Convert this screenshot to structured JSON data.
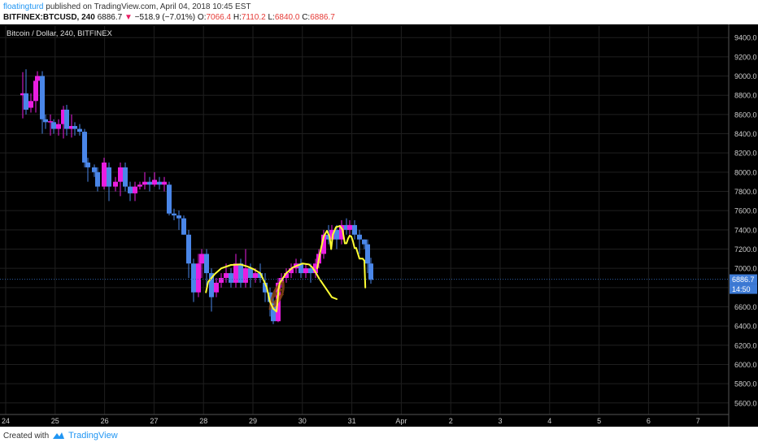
{
  "header": {
    "author": "floatingturd",
    "published_text": "published on TradingView.com, April 04, 2018 10:45 EST",
    "symbol": "BITFINEX:BTCUSD, 240",
    "last": "6886.7",
    "change_arrow": "▼",
    "change": "−518.9 (−7.01%)",
    "o_label": "O:",
    "o_value": "7066.4",
    "h_label": "H:",
    "h_value": "7110.2",
    "l_label": "L:",
    "l_value": "6840.0",
    "c_label": "C:",
    "c_value": "6886.7"
  },
  "footer": {
    "created_with": "Created with",
    "brand": "TradingView"
  },
  "colors": {
    "background": "#000000",
    "grid": "#1f1f1f",
    "up": "#e91ee0",
    "down": "#4a86e8",
    "drawing": "#ffff33",
    "drawing_brown": "#8b4513",
    "price_tag": "#3e7bd6"
  },
  "chart_data": {
    "type": "candlestick",
    "title": "Bitcoin / Dollar, 240, BITFINEX",
    "x_tick_labels": [
      "24",
      "25",
      "26",
      "27",
      "28",
      "29",
      "30",
      "31",
      "Apr",
      "2",
      "3",
      "4",
      "5",
      "6",
      "7"
    ],
    "y_ticks": [
      5600,
      5800,
      6000,
      6200,
      6400,
      6600,
      6800,
      7000,
      7200,
      7400,
      7600,
      7800,
      8000,
      8200,
      8400,
      8600,
      8800,
      9000,
      9200,
      9400
    ],
    "ylim": [
      5480,
      9520
    ],
    "grid": true,
    "last_price_label": "6886.7",
    "countdown_label": "14:50",
    "candles": [
      [
        7.0,
        8800,
        8820,
        8560,
        9040
      ],
      [
        8.0,
        8820,
        8650,
        8600,
        9070
      ],
      [
        9.5,
        8670,
        8740,
        8620,
        8820
      ],
      [
        11.0,
        8740,
        8950,
        8620,
        9000
      ],
      [
        11.5,
        8950,
        9000,
        8800,
        9050
      ],
      [
        13.0,
        9000,
        8550,
        8400,
        9050
      ],
      [
        14.0,
        8550,
        8520,
        8450,
        8600
      ],
      [
        15.5,
        8520,
        8530,
        8380,
        8600
      ],
      [
        16.5,
        8520,
        8450,
        8400,
        8550
      ],
      [
        18.0,
        8450,
        8500,
        8380,
        8550
      ],
      [
        19.5,
        8500,
        8650,
        8350,
        8690
      ],
      [
        20.5,
        8650,
        8450,
        8380,
        8700
      ],
      [
        22.0,
        8450,
        8480,
        8360,
        8600
      ],
      [
        23.0,
        8480,
        8450,
        8380,
        8520
      ],
      [
        24.5,
        8450,
        8420,
        8380,
        8500
      ],
      [
        26.0,
        8420,
        8100,
        8050,
        8450
      ],
      [
        27.0,
        8100,
        8050,
        7900,
        8150
      ],
      [
        29.0,
        8050,
        8000,
        7950,
        8080
      ],
      [
        30.0,
        8000,
        7850,
        7800,
        8050
      ],
      [
        32.0,
        7850,
        8100,
        7820,
        8150
      ],
      [
        33.5,
        8050,
        7850,
        7700,
        8100
      ],
      [
        35.5,
        7850,
        7900,
        7800,
        7950
      ],
      [
        37.0,
        7900,
        8050,
        7750,
        8100
      ],
      [
        38.5,
        8050,
        7850,
        7800,
        8100
      ],
      [
        40.0,
        7850,
        7780,
        7700,
        7900
      ],
      [
        41.5,
        7780,
        7850,
        7700,
        7900
      ],
      [
        43.0,
        7850,
        7870,
        7820,
        7900
      ],
      [
        44.5,
        7870,
        7900,
        7820,
        8000
      ],
      [
        46.0,
        7900,
        7870,
        7800,
        7950
      ],
      [
        47.5,
        7870,
        7920,
        7850,
        8000
      ],
      [
        49.0,
        7900,
        7870,
        7820,
        7950
      ],
      [
        50.5,
        7870,
        7900,
        7800,
        7950
      ],
      [
        52.0,
        7870,
        7570,
        7550,
        7900
      ],
      [
        53.5,
        7570,
        7550,
        7500,
        7620
      ],
      [
        55.0,
        7550,
        7520,
        7400,
        7600
      ],
      [
        56.5,
        7520,
        7350,
        7350,
        7550
      ],
      [
        58.0,
        7350,
        7050,
        6900,
        7400
      ],
      [
        59.5,
        7050,
        6750,
        6650,
        7100
      ],
      [
        61.0,
        6750,
        7050,
        6700,
        7150
      ],
      [
        62.0,
        7050,
        7150,
        6900,
        7200
      ],
      [
        63.5,
        7150,
        6950,
        6800,
        7200
      ],
      [
        65.0,
        6950,
        6700,
        6550,
        7000
      ],
      [
        66.5,
        6750,
        6850,
        6700,
        6900
      ],
      [
        68.0,
        6850,
        6900,
        6800,
        6950
      ],
      [
        69.5,
        6900,
        6950,
        6850,
        7050
      ],
      [
        71.0,
        6950,
        6850,
        6800,
        7000
      ],
      [
        72.5,
        6850,
        7050,
        6800,
        7150
      ],
      [
        74.0,
        7050,
        6850,
        6800,
        7100
      ],
      [
        75.5,
        6850,
        7000,
        6800,
        7200
      ],
      [
        77.0,
        7000,
        6900,
        6800,
        7050
      ],
      [
        78.5,
        6900,
        6950,
        6850,
        7000
      ],
      [
        80.0,
        6950,
        6900,
        6850,
        7050
      ],
      [
        81.5,
        6850,
        6750,
        6650,
        6950
      ],
      [
        83.0,
        6750,
        6650,
        6500,
        6800
      ],
      [
        84.0,
        6650,
        6450,
        6420,
        6700
      ],
      [
        85.5,
        6450,
        6850,
        6440,
        6900
      ],
      [
        86.5,
        6850,
        6900,
        6800,
        6950
      ],
      [
        88.0,
        6900,
        6950,
        6850,
        7000
      ],
      [
        89.5,
        6950,
        7000,
        6900,
        7050
      ],
      [
        91.0,
        7000,
        7050,
        6950,
        7100
      ],
      [
        92.5,
        7050,
        6950,
        6900,
        7100
      ],
      [
        94.0,
        6950,
        7000,
        6900,
        7050
      ],
      [
        95.5,
        7000,
        6950,
        6850,
        7050
      ],
      [
        97.0,
        6950,
        7050,
        6900,
        7100
      ],
      [
        98.0,
        7050,
        7150,
        7000,
        7200
      ],
      [
        99.5,
        7150,
        7350,
        7100,
        7400
      ],
      [
        101.0,
        7350,
        7300,
        7250,
        7450
      ],
      [
        102.0,
        7300,
        7400,
        7250,
        7450
      ],
      [
        103.5,
        7400,
        7300,
        7200,
        7450
      ],
      [
        105.0,
        7300,
        7450,
        7250,
        7500
      ],
      [
        106.5,
        7450,
        7400,
        7350,
        7520
      ],
      [
        107.5,
        7400,
        7450,
        7350,
        7500
      ],
      [
        109.0,
        7450,
        7350,
        7300,
        7500
      ],
      [
        110.5,
        7350,
        7300,
        7150,
        7400
      ],
      [
        112.0,
        7300,
        7250,
        7200,
        7300
      ],
      [
        113.0,
        7250,
        7050,
        6950,
        7300
      ],
      [
        114.0,
        7050,
        6880,
        6840,
        7110
      ]
    ],
    "drawings": [
      {
        "color": "yellow",
        "points": [
          [
            63.3,
            6750
          ],
          [
            64,
            6860
          ],
          [
            66,
            6940
          ],
          [
            68,
            7000
          ],
          [
            71,
            7035
          ],
          [
            74,
            7040
          ],
          [
            76,
            7020
          ],
          [
            78,
            6990
          ],
          [
            80,
            6950
          ],
          [
            81,
            6880
          ],
          [
            82,
            6800
          ],
          [
            83,
            6650
          ],
          [
            84,
            6580
          ],
          [
            85,
            6550
          ],
          [
            85.3,
            6650
          ],
          [
            85.6,
            6780
          ],
          [
            86,
            6850
          ],
          [
            87,
            6900
          ],
          [
            88,
            6950
          ],
          [
            90,
            7010
          ],
          [
            93,
            7050
          ],
          [
            95,
            7040
          ],
          [
            96,
            7010
          ],
          [
            97,
            6960
          ],
          [
            98,
            6900
          ],
          [
            99,
            6850
          ],
          [
            100,
            6800
          ],
          [
            101,
            6750
          ],
          [
            102,
            6700
          ],
          [
            103.5,
            6680
          ]
        ]
      },
      {
        "color": "yellow",
        "points": [
          [
            97.5,
            7000
          ],
          [
            98.5,
            7180
          ],
          [
            99.5,
            7330
          ],
          [
            100.5,
            7390
          ],
          [
            101.3,
            7330
          ],
          [
            101.8,
            7200
          ]
        ]
      },
      {
        "color": "yellow",
        "points": [
          [
            101.8,
            7200
          ],
          [
            102.3,
            7350
          ],
          [
            103.3,
            7430
          ],
          [
            104.5,
            7440
          ],
          [
            105.3,
            7400
          ],
          [
            105.8,
            7300
          ],
          [
            106,
            7260
          ]
        ]
      },
      {
        "color": "yellow",
        "points": [
          [
            106,
            7260
          ],
          [
            106.5,
            7260
          ],
          [
            107,
            7310
          ],
          [
            107.5,
            7340
          ],
          [
            108,
            7330
          ],
          [
            108.5,
            7280
          ],
          [
            109,
            7210
          ],
          [
            109.5,
            7210
          ]
        ]
      },
      {
        "color": "yellow",
        "points": [
          [
            109.5,
            7210
          ],
          [
            110.5,
            7100
          ],
          [
            111.5,
            7100
          ],
          [
            112,
            7080
          ],
          [
            112.3,
            6800
          ]
        ]
      }
    ]
  }
}
